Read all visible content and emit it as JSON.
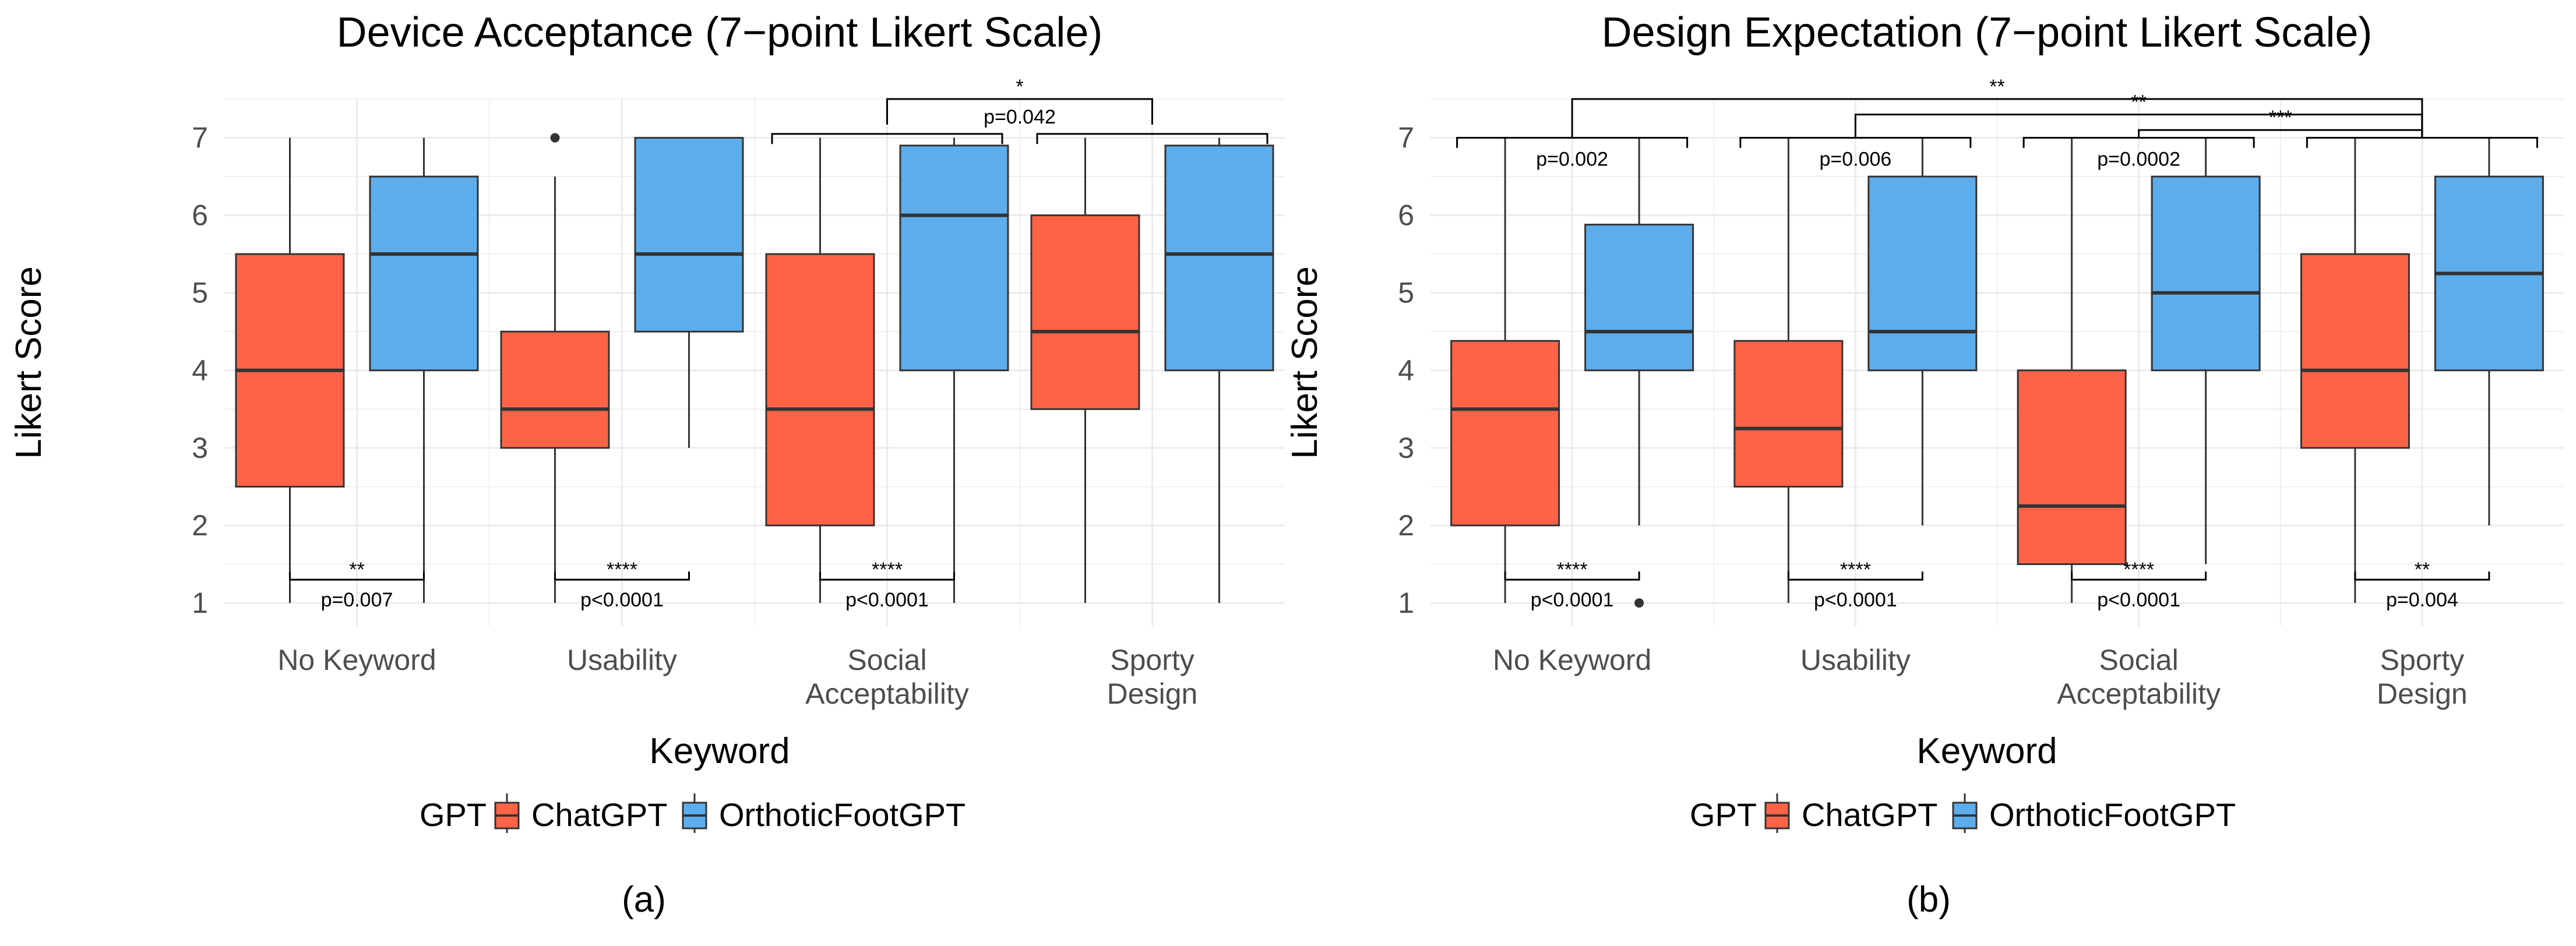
{
  "figure": {
    "panels": [
      {
        "caption": "(a)"
      },
      {
        "caption": "(b)"
      }
    ]
  },
  "colors": {
    "ChatGPT": "#FF6347",
    "OrthoticFootGPT": "#5DADEC",
    "grid": "#EBEBEB",
    "line": "#333333"
  },
  "chart_data": [
    {
      "type": "boxplot",
      "title": "Device Acceptance (7−point Likert Scale)",
      "xlabel": "Keyword",
      "ylabel": "Likert Score",
      "ylim": [
        0.7,
        7.5
      ],
      "yticks": [
        1,
        2,
        3,
        4,
        5,
        6,
        7
      ],
      "categories": [
        [
          "No Keyword"
        ],
        [
          "Usability"
        ],
        [
          "Social",
          "Acceptability"
        ],
        [
          "Sporty",
          "Design"
        ]
      ],
      "legend": {
        "title": "GPT",
        "position": "bottom",
        "entries": [
          "ChatGPT",
          "OrthoticFootGPT"
        ]
      },
      "series": [
        {
          "name": "ChatGPT",
          "boxes": [
            {
              "min": 1,
              "q1": 2.5,
              "median": 4,
              "q3": 5.5,
              "max": 7,
              "outliers": []
            },
            {
              "min": 1,
              "q1": 3,
              "median": 3.5,
              "q3": 4.5,
              "max": 6.5,
              "outliers": [
                7
              ]
            },
            {
              "min": 1,
              "q1": 2,
              "median": 3.5,
              "q3": 5.5,
              "max": 7,
              "outliers": []
            },
            {
              "min": 1,
              "q1": 3.5,
              "median": 4.5,
              "q3": 6,
              "max": 7,
              "outliers": []
            }
          ]
        },
        {
          "name": "OrthoticFootGPT",
          "boxes": [
            {
              "min": 1,
              "q1": 4,
              "median": 5.5,
              "q3": 6.5,
              "max": 7,
              "outliers": []
            },
            {
              "min": 3,
              "q1": 4.5,
              "median": 5.5,
              "q3": 7,
              "max": 7,
              "outliers": []
            },
            {
              "min": 1,
              "q1": 4,
              "median": 6,
              "q3": 6.9,
              "max": 7,
              "outliers": []
            },
            {
              "min": 1,
              "q1": 4,
              "median": 5.5,
              "q3": 6.9,
              "max": 7,
              "outliers": []
            }
          ]
        }
      ],
      "annotations": [
        {
          "kind": "within",
          "category": 0,
          "y": 1.3,
          "stars": "**",
          "p": "p=0.007"
        },
        {
          "kind": "within",
          "category": 1,
          "y": 1.3,
          "stars": "****",
          "p": "p<0.0001"
        },
        {
          "kind": "within",
          "category": 2,
          "y": 1.3,
          "stars": "****",
          "p": "p<0.0001"
        },
        {
          "kind": "group_brackets",
          "groups": [
            2,
            3
          ],
          "y": 7.05,
          "tip": 6.92
        },
        {
          "kind": "between",
          "from": 2,
          "to": 3,
          "y": 7.5,
          "tip": 7.17,
          "stars": "*",
          "p": "p=0.042"
        }
      ]
    },
    {
      "type": "boxplot",
      "title": "Design Expectation (7−point Likert Scale)",
      "xlabel": "Keyword",
      "ylabel": "Likert Score",
      "ylim": [
        0.7,
        7.5
      ],
      "yticks": [
        1,
        2,
        3,
        4,
        5,
        6,
        7
      ],
      "categories": [
        [
          "No Keyword"
        ],
        [
          "Usability"
        ],
        [
          "Social",
          "Acceptability"
        ],
        [
          "Sporty",
          "Design"
        ]
      ],
      "legend": {
        "title": "GPT",
        "position": "bottom",
        "entries": [
          "ChatGPT",
          "OrthoticFootGPT"
        ]
      },
      "series": [
        {
          "name": "ChatGPT",
          "boxes": [
            {
              "min": 1,
              "q1": 2,
              "median": 3.5,
              "q3": 4.38,
              "max": 7,
              "outliers": []
            },
            {
              "min": 1,
              "q1": 2.5,
              "median": 3.25,
              "q3": 4.38,
              "max": 7,
              "outliers": []
            },
            {
              "min": 1,
              "q1": 1.5,
              "median": 2.25,
              "q3": 4,
              "max": 7,
              "outliers": []
            },
            {
              "min": 1,
              "q1": 3,
              "median": 4,
              "q3": 5.5,
              "max": 7,
              "outliers": []
            }
          ]
        },
        {
          "name": "OrthoticFootGPT",
          "boxes": [
            {
              "min": 2,
              "q1": 4,
              "median": 4.5,
              "q3": 5.88,
              "max": 7,
              "outliers": [
                1
              ]
            },
            {
              "min": 2,
              "q1": 4,
              "median": 4.5,
              "q3": 6.5,
              "max": 7,
              "outliers": []
            },
            {
              "min": 1.5,
              "q1": 4,
              "median": 5,
              "q3": 6.5,
              "max": 7,
              "outliers": []
            },
            {
              "min": 2,
              "q1": 4,
              "median": 5.25,
              "q3": 6.5,
              "max": 7,
              "outliers": []
            }
          ]
        }
      ],
      "annotations": [
        {
          "kind": "within",
          "category": 0,
          "y": 1.3,
          "stars": "****",
          "p": "p<0.0001"
        },
        {
          "kind": "within",
          "category": 1,
          "y": 1.3,
          "stars": "****",
          "p": "p<0.0001"
        },
        {
          "kind": "within",
          "category": 2,
          "y": 1.3,
          "stars": "****",
          "p": "p<0.0001"
        },
        {
          "kind": "within",
          "category": 3,
          "y": 1.3,
          "stars": "**",
          "p": "p=0.004"
        },
        {
          "kind": "group_brackets",
          "groups": [
            0,
            1,
            2,
            3
          ],
          "y": 7.0,
          "tip": 6.87
        },
        {
          "kind": "group_p",
          "category": 0,
          "p": "p=0.002"
        },
        {
          "kind": "group_p",
          "category": 1,
          "p": "p=0.006"
        },
        {
          "kind": "group_p",
          "category": 2,
          "p": "p=0.0002"
        },
        {
          "kind": "between",
          "from": 0,
          "to": 3,
          "y": 7.5,
          "tip": 7.0,
          "stars": "**"
        },
        {
          "kind": "between",
          "from": 1,
          "to": 3,
          "y": 7.3,
          "tip": 7.0,
          "stars": "**"
        },
        {
          "kind": "between",
          "from": 2,
          "to": 3,
          "y": 7.1,
          "tip": 7.0,
          "stars": "***"
        }
      ]
    }
  ]
}
